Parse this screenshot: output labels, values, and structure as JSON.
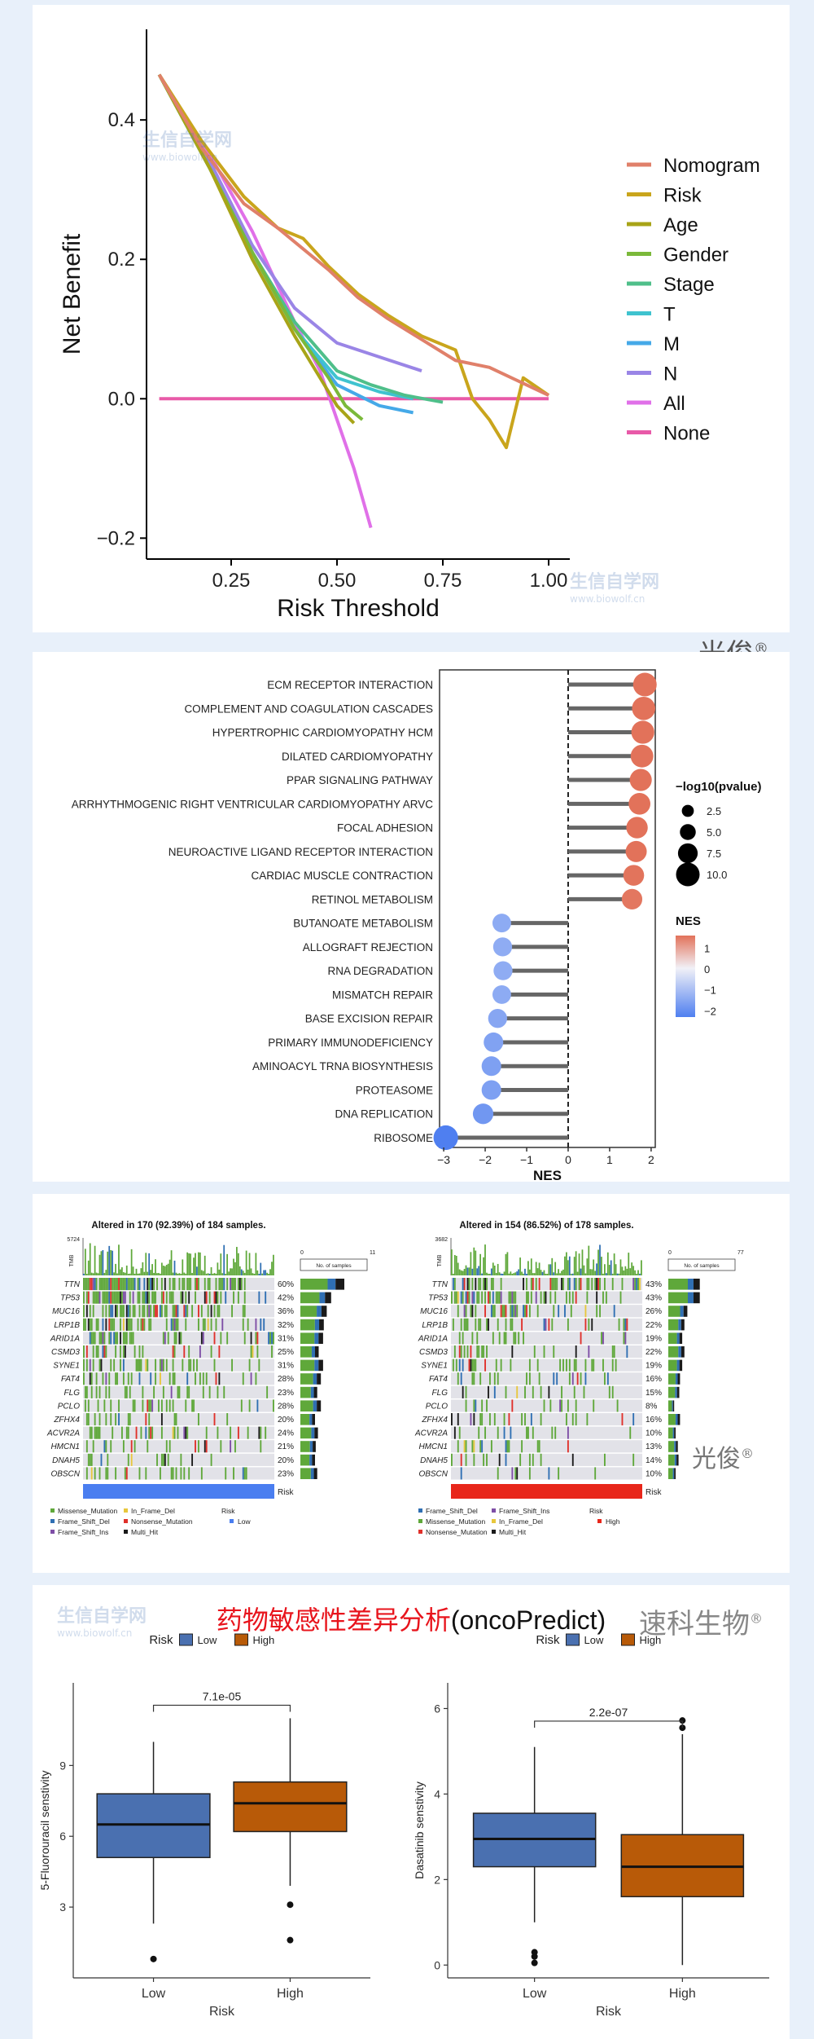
{
  "watermark": {
    "cn": "生信自学网",
    "url": "www.biowolf.cn"
  },
  "signature": "光俊",
  "signature_mark": "®",
  "dca": {
    "chart_data": {
      "type": "line",
      "xlabel": "Risk Threshold",
      "ylabel": "Net Benefit",
      "xlim": [
        0.05,
        1.05
      ],
      "ylim": [
        -0.23,
        0.53
      ],
      "xticks": [
        0.25,
        0.5,
        0.75,
        1.0
      ],
      "xticklabels": [
        "0.25",
        "0.50",
        "0.75",
        "1.00"
      ],
      "yticks": [
        -0.2,
        0.0,
        0.2,
        0.4
      ],
      "yticklabels": [
        "−0.2",
        "0.0",
        "0.2",
        "0.4"
      ],
      "legend_position": "right",
      "series": [
        {
          "name": "Nomogram",
          "color": "#e0806a",
          "x": [
            0.08,
            0.18,
            0.28,
            0.36,
            0.42,
            0.48,
            0.55,
            0.62,
            0.7,
            0.78,
            0.86,
            0.93,
            1.0
          ],
          "y": [
            0.465,
            0.36,
            0.28,
            0.245,
            0.215,
            0.185,
            0.145,
            0.115,
            0.085,
            0.055,
            0.045,
            0.025,
            0.005
          ]
        },
        {
          "name": "Risk",
          "color": "#c9a51c",
          "x": [
            0.08,
            0.18,
            0.28,
            0.36,
            0.42,
            0.48,
            0.55,
            0.62,
            0.7,
            0.78,
            0.82,
            0.86,
            0.9,
            0.94,
            1.0
          ],
          "y": [
            0.465,
            0.37,
            0.29,
            0.245,
            0.23,
            0.19,
            0.15,
            0.12,
            0.09,
            0.07,
            0.0,
            -0.03,
            -0.07,
            0.03,
            0.005
          ]
        },
        {
          "name": "Age",
          "color": "#a8a418",
          "x": [
            0.08,
            0.2,
            0.3,
            0.4,
            0.46,
            0.5,
            0.54
          ],
          "y": [
            0.465,
            0.33,
            0.2,
            0.09,
            0.03,
            -0.01,
            -0.035
          ]
        },
        {
          "name": "Gender",
          "color": "#7bb93a",
          "x": [
            0.08,
            0.2,
            0.3,
            0.4,
            0.48,
            0.52,
            0.56
          ],
          "y": [
            0.465,
            0.33,
            0.21,
            0.1,
            0.03,
            -0.01,
            -0.03
          ]
        },
        {
          "name": "Stage",
          "color": "#4fbf8a",
          "x": [
            0.08,
            0.2,
            0.3,
            0.4,
            0.5,
            0.58,
            0.66,
            0.75
          ],
          "y": [
            0.465,
            0.33,
            0.21,
            0.11,
            0.04,
            0.02,
            0.005,
            -0.005
          ]
        },
        {
          "name": "T",
          "color": "#3fc3cf",
          "x": [
            0.08,
            0.2,
            0.3,
            0.4,
            0.5,
            0.6,
            0.68
          ],
          "y": [
            0.465,
            0.33,
            0.21,
            0.1,
            0.03,
            0.01,
            0.0
          ]
        },
        {
          "name": "M",
          "color": "#45a9e8",
          "x": [
            0.08,
            0.2,
            0.3,
            0.4,
            0.5,
            0.6,
            0.68
          ],
          "y": [
            0.465,
            0.33,
            0.21,
            0.1,
            0.02,
            -0.01,
            -0.02
          ]
        },
        {
          "name": "N",
          "color": "#9a85e6",
          "x": [
            0.08,
            0.2,
            0.3,
            0.4,
            0.5,
            0.6,
            0.7
          ],
          "y": [
            0.465,
            0.34,
            0.22,
            0.13,
            0.08,
            0.06,
            0.04
          ]
        },
        {
          "name": "All",
          "color": "#e070e8",
          "x": [
            0.08,
            0.2,
            0.3,
            0.4,
            0.46,
            0.5,
            0.54,
            0.58
          ],
          "y": [
            0.465,
            0.35,
            0.24,
            0.11,
            0.04,
            -0.03,
            -0.1,
            -0.185
          ]
        },
        {
          "name": "None",
          "color": "#e85aa8",
          "x": [
            0.08,
            1.0
          ],
          "y": [
            0.0,
            0.0
          ]
        }
      ]
    }
  },
  "gsea": {
    "chart_data": {
      "type": "lollipop",
      "xlabel": "NES",
      "xlim": [
        -3.1,
        2.1
      ],
      "xticks": [
        -3,
        -2,
        -1,
        0,
        1,
        2
      ],
      "xticklabels": [
        "−3",
        "−2",
        "−1",
        "0",
        "1",
        "2"
      ],
      "categories": [
        "ECM RECEPTOR INTERACTION",
        "COMPLEMENT AND COAGULATION CASCADES",
        "HYPERTROPHIC CARDIOMYOPATHY HCM",
        "DILATED CARDIOMYOPATHY",
        "PPAR SIGNALING PATHWAY",
        "ARRHYTHMOGENIC RIGHT VENTRICULAR CARDIOMYOPATHY ARVC",
        "FOCAL ADHESION",
        "NEUROACTIVE LIGAND RECEPTOR INTERACTION",
        "CARDIAC MUSCLE CONTRACTION",
        "RETINOL METABOLISM",
        "BUTANOATE METABOLISM",
        "ALLOGRAFT REJECTION",
        "RNA DEGRADATION",
        "MISMATCH REPAIR",
        "BASE EXCISION REPAIR",
        "PRIMARY IMMUNODEFICIENCY",
        "AMINOACYL TRNA BIOSYNTHESIS",
        "PROTEASOME",
        "DNA REPLICATION",
        "RIBOSOME"
      ],
      "nes": [
        1.85,
        1.82,
        1.8,
        1.78,
        1.75,
        1.72,
        1.66,
        1.64,
        1.58,
        1.54,
        -1.6,
        -1.58,
        -1.57,
        -1.6,
        -1.7,
        -1.8,
        -1.85,
        -1.85,
        -2.05,
        -2.95
      ],
      "log10p": [
        10.0,
        9.8,
        9.6,
        9.4,
        9.0,
        8.8,
        8.6,
        8.4,
        8.2,
        8.0,
        6.8,
        7.0,
        7.0,
        6.8,
        7.0,
        7.4,
        7.4,
        7.4,
        8.0,
        10.6
      ],
      "size_legend": {
        "title": "−log10(pvalue)",
        "labels": [
          "2.5",
          "5.0",
          "7.5",
          "10.0"
        ],
        "values": [
          2.5,
          5.0,
          7.5,
          10.0
        ]
      },
      "color_legend": {
        "title": "NES",
        "labels": [
          "1",
          "0",
          "−1",
          "−2"
        ],
        "values": [
          1,
          0,
          -1,
          -2
        ],
        "low": "#4f7ff0",
        "mid": "#f1f1f7",
        "high": "#e2725a"
      }
    }
  },
  "oncoplot": {
    "legend_risk_label": "Risk",
    "risk_colors": {
      "Low": "#4a7ef0",
      "High": "#e8261a"
    },
    "mutation_colors": {
      "Missense_Mutation": "#5fa83a",
      "Frame_Shift_Del": "#2f6fb3",
      "Frame_Shift_Ins": "#7e4ea6",
      "In_Frame_Del": "#e8c73c",
      "Nonsense_Mutation": "#e0302a",
      "Multi_Hit": "#1a1a1a",
      "In_Frame_Ins": "#b58d4a"
    },
    "left": {
      "title": "Altered in 170 (92.39%) of 184 samples.",
      "tmb_max": "5724",
      "tmb_label": "TMB",
      "no_samples": "No. of samples",
      "bar_min": "0",
      "bar_max": "11",
      "genes": [
        "TTN",
        "TP53",
        "MUC16",
        "LRP1B",
        "ARID1A",
        "CSMD3",
        "SYNE1",
        "FAT4",
        "FLG",
        "PCLO",
        "ZFHX4",
        "ACVR2A",
        "HMCN1",
        "DNAH5",
        "OBSCN"
      ],
      "percents": [
        "60%",
        "42%",
        "36%",
        "32%",
        "31%",
        "25%",
        "31%",
        "28%",
        "23%",
        "28%",
        "20%",
        "24%",
        "21%",
        "20%",
        "23%"
      ],
      "freq": [
        0.6,
        0.42,
        0.36,
        0.32,
        0.31,
        0.25,
        0.31,
        0.28,
        0.23,
        0.28,
        0.2,
        0.24,
        0.21,
        0.2,
        0.23
      ],
      "risk_group": "Low",
      "legend": [
        [
          "Missense_Mutation",
          "In_Frame_Del"
        ],
        [
          "Frame_Shift_Del",
          "Nonsense_Mutation"
        ],
        [
          "Frame_Shift_Ins",
          "Multi_Hit"
        ]
      ],
      "risk_legend": "Low"
    },
    "right": {
      "title": "Altered in 154 (86.52%) of 178 samples.",
      "tmb_max": "3682",
      "tmb_label": "TMB",
      "no_samples": "No. of samples",
      "bar_min": "0",
      "bar_max": "77",
      "genes": [
        "TTN",
        "TP53",
        "MUC16",
        "LRP1B",
        "ARID1A",
        "CSMD3",
        "SYNE1",
        "FAT4",
        "FLG",
        "PCLO",
        "ZFHX4",
        "ACVR2A",
        "HMCN1",
        "DNAH5",
        "OBSCN"
      ],
      "percents": [
        "43%",
        "43%",
        "26%",
        "22%",
        "19%",
        "22%",
        "19%",
        "16%",
        "15%",
        "8%",
        "16%",
        "10%",
        "13%",
        "14%",
        "10%"
      ],
      "freq": [
        0.43,
        0.43,
        0.26,
        0.22,
        0.19,
        0.22,
        0.19,
        0.16,
        0.15,
        0.08,
        0.16,
        0.1,
        0.13,
        0.14,
        0.1
      ],
      "risk_group": "High",
      "legend": [
        [
          "Frame_Shift_Del",
          "Frame_Shift_Ins"
        ],
        [
          "Missense_Mutation",
          "In_Frame_Del"
        ],
        [
          "Nonsense_Mutation",
          "Multi_Hit"
        ]
      ],
      "risk_legend": "High"
    }
  },
  "drug": {
    "title_cn": "药物敏感性差异分析",
    "title_en": "(oncoPredict)",
    "brand": "速科生物",
    "brand_mark": "®",
    "chart_data": [
      {
        "type": "box",
        "legend_title": "Risk",
        "legend": [
          "Low",
          "High"
        ],
        "colors": {
          "Low": "#4a70b0",
          "High": "#b85a08"
        },
        "ylabel": "5-Fluorouracil senstivity",
        "xlabel": "Risk",
        "categories": [
          "Low",
          "High"
        ],
        "ylim": [
          0,
          12.5
        ],
        "yticks": [
          3,
          6,
          9
        ],
        "yticklabels": [
          "3",
          "6",
          "9"
        ],
        "pvalue": "7.1e-05",
        "boxes": [
          {
            "q1": 5.1,
            "median": 6.5,
            "q3": 7.8,
            "whislo": 2.3,
            "whishi": 10.0,
            "outliers": [
              0.8
            ]
          },
          {
            "q1": 6.2,
            "median": 7.4,
            "q3": 8.3,
            "whislo": 3.9,
            "whishi": 11.0,
            "outliers": [
              3.1,
              1.6
            ]
          }
        ]
      },
      {
        "type": "box",
        "legend_title": "Risk",
        "legend": [
          "Low",
          "High"
        ],
        "colors": {
          "Low": "#4a70b0",
          "High": "#b85a08"
        },
        "ylabel": "Dasatinib senstivity",
        "xlabel": "Risk",
        "categories": [
          "Low",
          "High"
        ],
        "ylim": [
          -0.3,
          6.6
        ],
        "yticks": [
          0,
          2,
          4,
          6
        ],
        "yticklabels": [
          "0",
          "2",
          "4",
          "6"
        ],
        "pvalue": "2.2e-07",
        "boxes": [
          {
            "q1": 2.3,
            "median": 2.95,
            "q3": 3.55,
            "whislo": 1.0,
            "whishi": 5.1,
            "outliers": [
              0.3,
              0.2,
              0.05
            ]
          },
          {
            "q1": 1.6,
            "median": 2.3,
            "q3": 3.05,
            "whislo": 0.0,
            "whishi": 5.4,
            "outliers": [
              5.55,
              5.72
            ]
          }
        ]
      }
    ]
  }
}
